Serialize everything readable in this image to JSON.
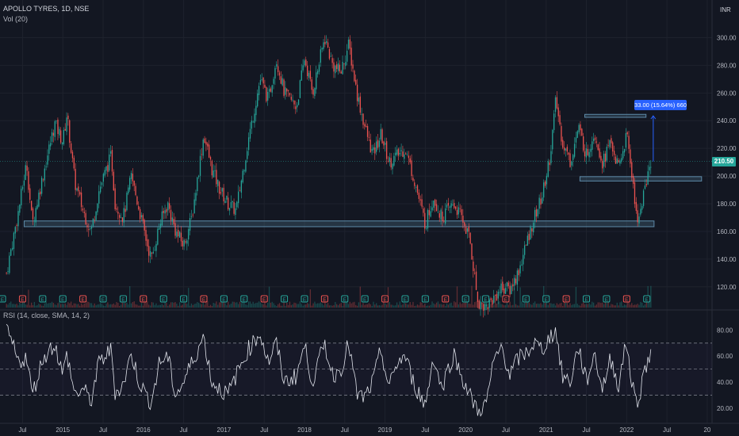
{
  "header": {
    "symbol": "APOLLO TYRES, 1D, NSE",
    "volume": "Vol (20)",
    "currency": "INR",
    "rsi": "RSI (14, close, SMA, 14, 2)"
  },
  "current_price": "210.50",
  "measure": {
    "label": "33.00 (15.64%) 660"
  },
  "colors": {
    "up": "#26a69a",
    "down": "#ef5350",
    "grid": "#1e222d",
    "zone": "#5d8aa8",
    "rsi": "#e0e3eb",
    "measure": "#2962ff"
  },
  "chart_data": {
    "type": "candlestick",
    "price_ticks": [
      "300.00",
      "280.00",
      "260.00",
      "240.00",
      "220.00",
      "200.00",
      "180.00",
      "160.00",
      "140.00",
      "120.00"
    ],
    "price_tick_values": [
      300,
      280,
      260,
      240,
      220,
      200,
      180,
      160,
      140,
      120
    ],
    "rsi_ticks": [
      "80.00",
      "60.00",
      "40.00",
      "20.00"
    ],
    "rsi_tick_values": [
      80,
      60,
      40,
      20
    ],
    "rsi_bands": [
      70,
      50,
      30
    ],
    "time_labels": [
      "Jul",
      "2015",
      "Jul",
      "2016",
      "Jul",
      "2017",
      "Jul",
      "2018",
      "Jul",
      "2019",
      "Jul",
      "2020",
      "Jul",
      "2021",
      "Jul",
      "2022",
      "Jul",
      "20"
    ],
    "time_label_years": [
      2014.5,
      2015.0,
      2015.5,
      2016.0,
      2016.5,
      2017.0,
      2017.5,
      2018.0,
      2018.5,
      2019.0,
      2019.5,
      2020.0,
      2020.5,
      2021.0,
      2021.5,
      2022.0,
      2022.5,
      2023.0
    ],
    "price_range": [
      105,
      310
    ],
    "rsi_range": [
      12,
      90
    ],
    "price_path": [
      [
        2014.3,
        130
      ],
      [
        2014.45,
        175
      ],
      [
        2014.55,
        210
      ],
      [
        2014.62,
        165
      ],
      [
        2014.75,
        200
      ],
      [
        2014.9,
        238
      ],
      [
        2015.0,
        225
      ],
      [
        2015.05,
        245
      ],
      [
        2015.15,
        195
      ],
      [
        2015.25,
        175
      ],
      [
        2015.35,
        160
      ],
      [
        2015.45,
        190
      ],
      [
        2015.6,
        215
      ],
      [
        2015.65,
        180
      ],
      [
        2015.75,
        170
      ],
      [
        2015.85,
        200
      ],
      [
        2015.95,
        175
      ],
      [
        2016.05,
        150
      ],
      [
        2016.1,
        140
      ],
      [
        2016.2,
        165
      ],
      [
        2016.3,
        180
      ],
      [
        2016.4,
        160
      ],
      [
        2016.5,
        150
      ],
      [
        2016.6,
        170
      ],
      [
        2016.75,
        230
      ],
      [
        2016.85,
        205
      ],
      [
        2016.95,
        190
      ],
      [
        2017.05,
        180
      ],
      [
        2017.15,
        175
      ],
      [
        2017.3,
        225
      ],
      [
        2017.45,
        270
      ],
      [
        2017.55,
        255
      ],
      [
        2017.65,
        285
      ],
      [
        2017.75,
        260
      ],
      [
        2017.9,
        250
      ],
      [
        2018.0,
        285
      ],
      [
        2018.1,
        260
      ],
      [
        2018.25,
        300
      ],
      [
        2018.35,
        280
      ],
      [
        2018.45,
        275
      ],
      [
        2018.55,
        295
      ],
      [
        2018.65,
        260
      ],
      [
        2018.75,
        235
      ],
      [
        2018.85,
        215
      ],
      [
        2018.95,
        230
      ],
      [
        2019.05,
        210
      ],
      [
        2019.15,
        215
      ],
      [
        2019.25,
        220
      ],
      [
        2019.35,
        200
      ],
      [
        2019.5,
        165
      ],
      [
        2019.6,
        185
      ],
      [
        2019.7,
        170
      ],
      [
        2019.85,
        180
      ],
      [
        2019.95,
        170
      ],
      [
        2020.05,
        155
      ],
      [
        2020.15,
        110
      ],
      [
        2020.25,
        105
      ],
      [
        2020.35,
        112
      ],
      [
        2020.45,
        120
      ],
      [
        2020.55,
        118
      ],
      [
        2020.65,
        130
      ],
      [
        2020.75,
        150
      ],
      [
        2020.85,
        170
      ],
      [
        2020.95,
        185
      ],
      [
        2021.05,
        215
      ],
      [
        2021.12,
        255
      ],
      [
        2021.2,
        225
      ],
      [
        2021.3,
        210
      ],
      [
        2021.4,
        235
      ],
      [
        2021.5,
        215
      ],
      [
        2021.6,
        232
      ],
      [
        2021.7,
        210
      ],
      [
        2021.8,
        225
      ],
      [
        2021.9,
        205
      ],
      [
        2022.0,
        230
      ],
      [
        2022.05,
        210
      ],
      [
        2022.1,
        180
      ],
      [
        2022.15,
        168
      ],
      [
        2022.2,
        185
      ],
      [
        2022.3,
        210
      ]
    ],
    "rsi_path": [
      [
        2014.3,
        82
      ],
      [
        2014.45,
        55
      ],
      [
        2014.55,
        60
      ],
      [
        2014.62,
        30
      ],
      [
        2014.75,
        58
      ],
      [
        2014.9,
        70
      ],
      [
        2015.0,
        45
      ],
      [
        2015.05,
        62
      ],
      [
        2015.15,
        30
      ],
      [
        2015.25,
        35
      ],
      [
        2015.35,
        25
      ],
      [
        2015.45,
        55
      ],
      [
        2015.6,
        65
      ],
      [
        2015.65,
        32
      ],
      [
        2015.75,
        38
      ],
      [
        2015.85,
        62
      ],
      [
        2015.95,
        40
      ],
      [
        2016.05,
        28
      ],
      [
        2016.1,
        25
      ],
      [
        2016.2,
        55
      ],
      [
        2016.3,
        60
      ],
      [
        2016.4,
        30
      ],
      [
        2016.5,
        40
      ],
      [
        2016.6,
        55
      ],
      [
        2016.75,
        75
      ],
      [
        2016.85,
        40
      ],
      [
        2016.95,
        35
      ],
      [
        2017.05,
        30
      ],
      [
        2017.15,
        45
      ],
      [
        2017.3,
        65
      ],
      [
        2017.45,
        78
      ],
      [
        2017.55,
        55
      ],
      [
        2017.65,
        70
      ],
      [
        2017.75,
        40
      ],
      [
        2017.9,
        45
      ],
      [
        2018.0,
        68
      ],
      [
        2018.1,
        40
      ],
      [
        2018.25,
        70
      ],
      [
        2018.35,
        45
      ],
      [
        2018.45,
        50
      ],
      [
        2018.55,
        70
      ],
      [
        2018.65,
        30
      ],
      [
        2018.75,
        28
      ],
      [
        2018.85,
        40
      ],
      [
        2018.95,
        65
      ],
      [
        2019.05,
        35
      ],
      [
        2019.15,
        55
      ],
      [
        2019.25,
        60
      ],
      [
        2019.35,
        40
      ],
      [
        2019.5,
        22
      ],
      [
        2019.6,
        60
      ],
      [
        2019.7,
        35
      ],
      [
        2019.85,
        62
      ],
      [
        2019.95,
        45
      ],
      [
        2020.05,
        30
      ],
      [
        2020.15,
        18
      ],
      [
        2020.25,
        22
      ],
      [
        2020.35,
        55
      ],
      [
        2020.45,
        68
      ],
      [
        2020.55,
        45
      ],
      [
        2020.65,
        58
      ],
      [
        2020.75,
        62
      ],
      [
        2020.85,
        70
      ],
      [
        2020.95,
        65
      ],
      [
        2021.05,
        75
      ],
      [
        2021.12,
        80
      ],
      [
        2021.2,
        45
      ],
      [
        2021.3,
        40
      ],
      [
        2021.4,
        68
      ],
      [
        2021.5,
        40
      ],
      [
        2021.6,
        62
      ],
      [
        2021.7,
        35
      ],
      [
        2021.8,
        58
      ],
      [
        2021.9,
        38
      ],
      [
        2022.0,
        72
      ],
      [
        2022.05,
        45
      ],
      [
        2022.1,
        28
      ],
      [
        2022.15,
        25
      ],
      [
        2022.2,
        45
      ],
      [
        2022.3,
        62
      ]
    ],
    "zones": [
      {
        "x0": 2014.52,
        "x1": 2022.34,
        "low": 164,
        "high": 167
      },
      {
        "x0": 2021.42,
        "x1": 2022.93,
        "low": 197,
        "high": 199
      },
      {
        "x0": 2021.48,
        "x1": 2022.24,
        "low": 243,
        "high": 244
      }
    ],
    "measure_range": {
      "x": 2022.33,
      "from": 210.5,
      "to": 243.5
    }
  }
}
